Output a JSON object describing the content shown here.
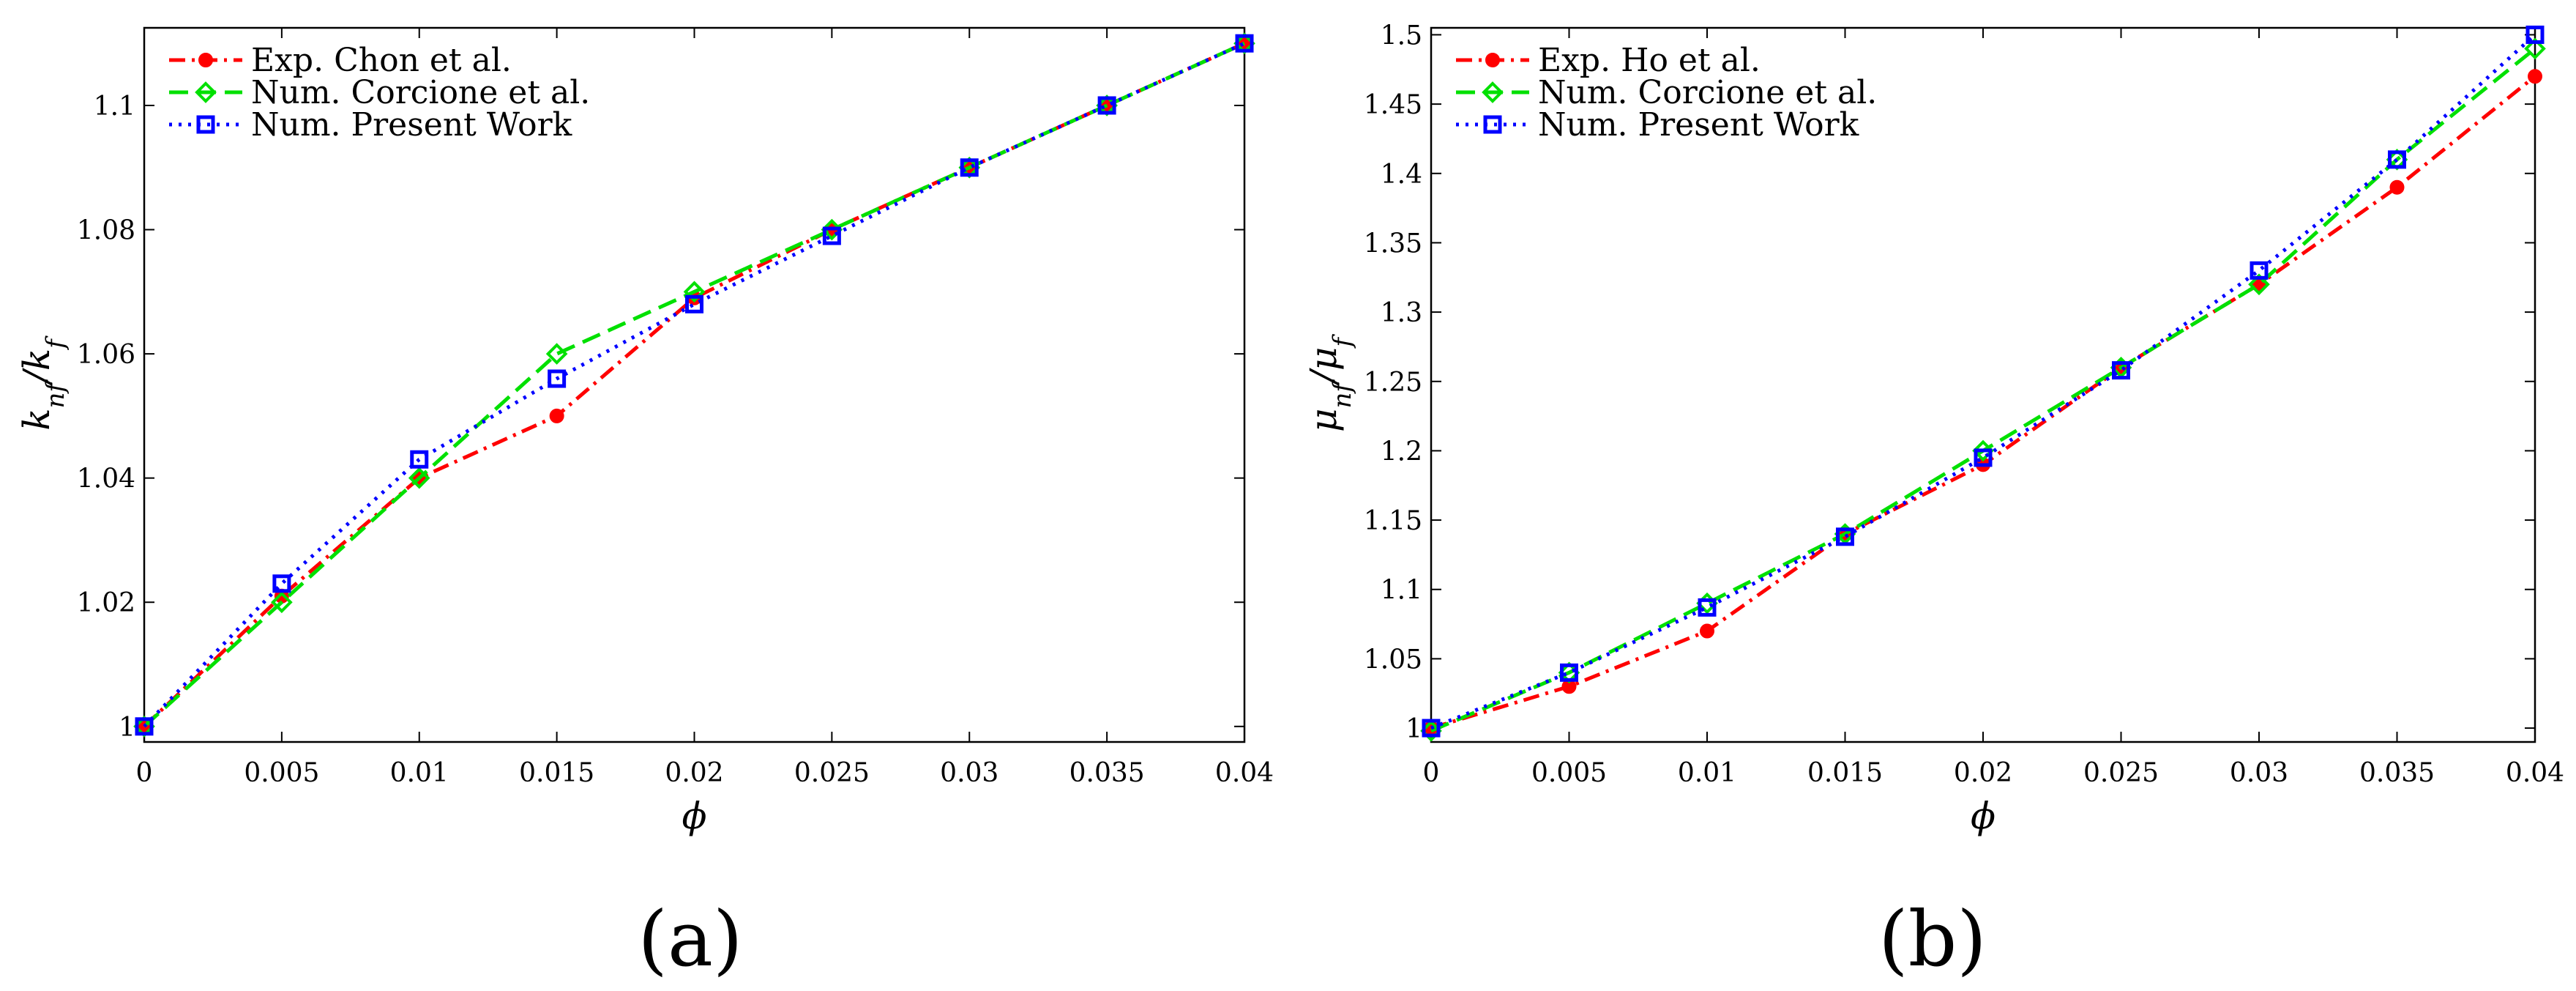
{
  "figure": {
    "panel_a_label": "(a)",
    "panel_b_label": "(b)"
  },
  "chart_data": [
    {
      "id": "a",
      "type": "line",
      "title": "",
      "xlabel": "ϕ",
      "ylabel": "k_nf / k_f",
      "ylabel_parts": {
        "base": "k",
        "sub_left": "nf",
        "sep": "/",
        "base2": "k",
        "sub_right": "f"
      },
      "xlim": [
        0,
        0.04
      ],
      "ylim": [
        0.9975,
        1.1125
      ],
      "xticks": [
        0,
        0.005,
        0.01,
        0.015,
        0.02,
        0.025,
        0.03,
        0.035,
        0.04
      ],
      "xtick_labels": [
        "0",
        "0.005",
        "0.01",
        "0.015",
        "0.02",
        "0.025",
        "0.03",
        "0.035",
        "0.04"
      ],
      "yticks": [
        1,
        1.02,
        1.04,
        1.06,
        1.08,
        1.1
      ],
      "ytick_labels": [
        "1",
        "1.02",
        "1.04",
        "1.06",
        "1.08",
        "1.1"
      ],
      "grid": false,
      "legend_position": "top-left",
      "x": [
        0,
        0.005,
        0.01,
        0.015,
        0.02,
        0.025,
        0.03,
        0.035,
        0.04
      ],
      "series": [
        {
          "name": "Exp.  Chon et al.",
          "values": [
            1.0,
            1.021,
            1.04,
            1.05,
            1.069,
            1.08,
            1.09,
            1.1,
            1.11
          ],
          "color": "#ff0000",
          "linestyle": "dashdot",
          "marker": "dot"
        },
        {
          "name": "Num.  Corcione et al.",
          "values": [
            1.0,
            1.02,
            1.04,
            1.06,
            1.07,
            1.08,
            1.09,
            1.1,
            1.11
          ],
          "color": "#00e000",
          "linestyle": "dashed",
          "marker": "diamond"
        },
        {
          "name": "Num.  Present Work",
          "values": [
            1.0,
            1.023,
            1.043,
            1.056,
            1.068,
            1.079,
            1.09,
            1.1,
            1.11
          ],
          "color": "#0000ff",
          "linestyle": "dotted",
          "marker": "square"
        }
      ]
    },
    {
      "id": "b",
      "type": "line",
      "title": "",
      "xlabel": "ϕ",
      "ylabel": "μ_nf / μ_f",
      "ylabel_parts": {
        "base": "μ",
        "sub_left": "nf",
        "sep": "/",
        "base2": "μ",
        "sub_right": "f"
      },
      "xlim": [
        0,
        0.04
      ],
      "ylim": [
        0.99,
        1.505
      ],
      "xticks": [
        0,
        0.005,
        0.01,
        0.015,
        0.02,
        0.025,
        0.03,
        0.035,
        0.04
      ],
      "xtick_labels": [
        "0",
        "0.005",
        "0.01",
        "0.015",
        "0.02",
        "0.025",
        "0.03",
        "0.035",
        "0.04"
      ],
      "yticks": [
        1,
        1.05,
        1.1,
        1.15,
        1.2,
        1.25,
        1.3,
        1.35,
        1.4,
        1.45,
        1.5
      ],
      "ytick_labels": [
        "1",
        "1.05",
        "1.1",
        "1.15",
        "1.2",
        "1.25",
        "1.3",
        "1.35",
        "1.4",
        "1.45",
        "1.5"
      ],
      "grid": false,
      "legend_position": "top-left",
      "x": [
        0,
        0.005,
        0.01,
        0.015,
        0.02,
        0.025,
        0.03,
        0.035,
        0.04
      ],
      "series": [
        {
          "name": "Exp.  Ho et al.",
          "values": [
            1.0,
            1.03,
            1.07,
            1.14,
            1.19,
            1.26,
            1.32,
            1.39,
            1.47
          ],
          "color": "#ff0000",
          "linestyle": "dashdot",
          "marker": "dot"
        },
        {
          "name": "Num.  Corcione et al.",
          "values": [
            0.998,
            1.04,
            1.09,
            1.14,
            1.2,
            1.26,
            1.32,
            1.41,
            1.49
          ],
          "color": "#00e000",
          "linestyle": "dashed",
          "marker": "diamond"
        },
        {
          "name": "Num.  Present Work",
          "values": [
            1.0,
            1.04,
            1.087,
            1.138,
            1.195,
            1.258,
            1.33,
            1.41,
            1.5
          ],
          "color": "#0000ff",
          "linestyle": "dotted",
          "marker": "square"
        }
      ]
    }
  ]
}
